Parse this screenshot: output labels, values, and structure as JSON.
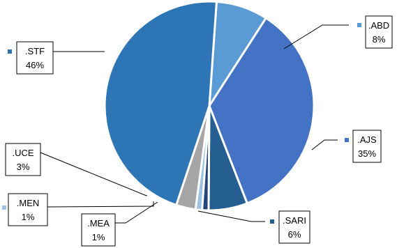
{
  "chart_data": {
    "type": "pie",
    "title": "",
    "slices": [
      {
        "name": ".ABD",
        "value": 8,
        "label": "8%",
        "color": "#5b9bd5"
      },
      {
        "name": ".AJS",
        "value": 35,
        "label": "35%",
        "color": "#4472c4"
      },
      {
        "name": ".SARI",
        "value": 6,
        "label": "6%",
        "color": "#255e91"
      },
      {
        "name": ".MEA",
        "value": 1,
        "label": "1%",
        "color": "#264478"
      },
      {
        "name": ".MEN",
        "value": 1,
        "label": "1%",
        "color": "#9dc3e6"
      },
      {
        "name": ".UCE",
        "value": 3,
        "label": "3%",
        "color": "#a5a5a5"
      },
      {
        "name": ".STF",
        "value": 46,
        "label": "46%",
        "color": "#2e75b6"
      }
    ],
    "start_angle_deg": 4,
    "direction": "clockwise",
    "legend": "none",
    "data_labels": "outside-with-leader-lines"
  }
}
